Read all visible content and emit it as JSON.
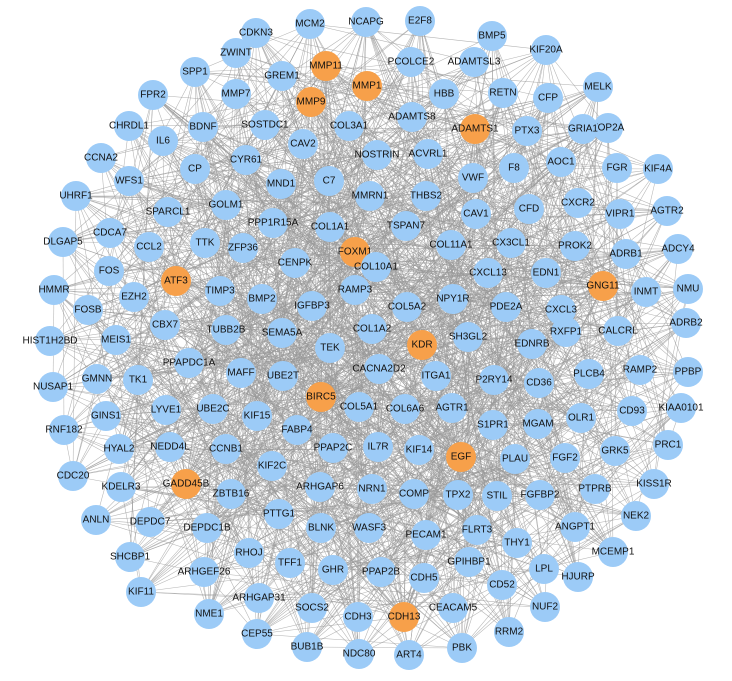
{
  "colors": {
    "background": "#ffffff",
    "normal_node": "#9ccbf7",
    "hub_node": "#f7a04a",
    "edge": "#9a9a9a",
    "label": "#111111"
  },
  "nodes": [
    {
      "id": "CDKN3",
      "hub": false
    },
    {
      "id": "MCM2",
      "hub": false
    },
    {
      "id": "NCAPG",
      "hub": false
    },
    {
      "id": "E2F8",
      "hub": false
    },
    {
      "id": "BMP5",
      "hub": false
    },
    {
      "id": "KIF20A",
      "hub": false
    },
    {
      "id": "ZWINT",
      "hub": false
    },
    {
      "id": "MMP11",
      "hub": true
    },
    {
      "id": "PCOLCE2",
      "hub": false
    },
    {
      "id": "ADAMTSL3",
      "hub": false
    },
    {
      "id": "SPP1",
      "hub": false
    },
    {
      "id": "GREM1",
      "hub": false
    },
    {
      "id": "MMP1",
      "hub": true
    },
    {
      "id": "MELK",
      "hub": false
    },
    {
      "id": "FPR2",
      "hub": false
    },
    {
      "id": "MMP7",
      "hub": false
    },
    {
      "id": "MMP9",
      "hub": true
    },
    {
      "id": "HBB",
      "hub": false
    },
    {
      "id": "RETN",
      "hub": false
    },
    {
      "id": "CFP",
      "hub": false
    },
    {
      "id": "CHRDL1",
      "hub": false
    },
    {
      "id": "BDNF",
      "hub": false
    },
    {
      "id": "SOSTDC1",
      "hub": false
    },
    {
      "id": "ADAMTS8",
      "hub": false
    },
    {
      "id": "ADAMTS1",
      "hub": true
    },
    {
      "id": "TOP2A",
      "hub": false
    },
    {
      "id": "COL3A1",
      "hub": false
    },
    {
      "id": "PTX3",
      "hub": false
    },
    {
      "id": "GRIA1",
      "hub": false
    },
    {
      "id": "CCNA2",
      "hub": false
    },
    {
      "id": "IL6",
      "hub": false
    },
    {
      "id": "CAV2",
      "hub": false
    },
    {
      "id": "NOSTRIN",
      "hub": false
    },
    {
      "id": "ACVRL1",
      "hub": false
    },
    {
      "id": "KIF4A",
      "hub": false
    },
    {
      "id": "CP",
      "hub": false
    },
    {
      "id": "CYR61",
      "hub": false
    },
    {
      "id": "F8",
      "hub": false
    },
    {
      "id": "AOC1",
      "hub": false
    },
    {
      "id": "FGR",
      "hub": false
    },
    {
      "id": "UHRF1",
      "hub": false
    },
    {
      "id": "WFS1",
      "hub": false
    },
    {
      "id": "MND1",
      "hub": false
    },
    {
      "id": "C7",
      "hub": false
    },
    {
      "id": "VWF",
      "hub": false
    },
    {
      "id": "CXCR2",
      "hub": false
    },
    {
      "id": "AGTR2",
      "hub": false
    },
    {
      "id": "SPARCL1",
      "hub": false
    },
    {
      "id": "GOLM1",
      "hub": false
    },
    {
      "id": "MMRN1",
      "hub": false
    },
    {
      "id": "THBS2",
      "hub": false
    },
    {
      "id": "CFD",
      "hub": false
    },
    {
      "id": "VIPR1",
      "hub": false
    },
    {
      "id": "DLGAP5",
      "hub": false
    },
    {
      "id": "CDCA7",
      "hub": false
    },
    {
      "id": "PPP1R15A",
      "hub": false
    },
    {
      "id": "COL1A1",
      "hub": false
    },
    {
      "id": "TSPAN7",
      "hub": false
    },
    {
      "id": "CAV1",
      "hub": false
    },
    {
      "id": "ADCY4",
      "hub": false
    },
    {
      "id": "CCL2",
      "hub": false
    },
    {
      "id": "TTK",
      "hub": false
    },
    {
      "id": "ZFP36",
      "hub": false
    },
    {
      "id": "FOXM1",
      "hub": true
    },
    {
      "id": "COL11A1",
      "hub": false
    },
    {
      "id": "CX3CL1",
      "hub": false
    },
    {
      "id": "PROK2",
      "hub": false
    },
    {
      "id": "ADRB1",
      "hub": false
    },
    {
      "id": "FOS",
      "hub": false
    },
    {
      "id": "CENPK",
      "hub": false
    },
    {
      "id": "COL10A1",
      "hub": false
    },
    {
      "id": "CXCL13",
      "hub": false
    },
    {
      "id": "EDN1",
      "hub": false
    },
    {
      "id": "GNG11",
      "hub": true
    },
    {
      "id": "HMMR",
      "hub": false
    },
    {
      "id": "ATF3",
      "hub": true
    },
    {
      "id": "NMU",
      "hub": false
    },
    {
      "id": "EZH2",
      "hub": false
    },
    {
      "id": "TIMP3",
      "hub": false
    },
    {
      "id": "BMP2",
      "hub": false
    },
    {
      "id": "RAMP3",
      "hub": false
    },
    {
      "id": "INMT",
      "hub": false
    },
    {
      "id": "FOSB",
      "hub": false
    },
    {
      "id": "IGFBP3",
      "hub": false
    },
    {
      "id": "COL5A2",
      "hub": false
    },
    {
      "id": "NPY1R",
      "hub": false
    },
    {
      "id": "PDE2A",
      "hub": false
    },
    {
      "id": "CXCL3",
      "hub": false
    },
    {
      "id": "ADRB2",
      "hub": false
    },
    {
      "id": "HIST1H2BD",
      "hub": false
    },
    {
      "id": "MEIS1",
      "hub": false
    },
    {
      "id": "CBX7",
      "hub": false
    },
    {
      "id": "TUBB2B",
      "hub": false
    },
    {
      "id": "SEMA5A",
      "hub": false
    },
    {
      "id": "COL1A2",
      "hub": false
    },
    {
      "id": "SH3GL2",
      "hub": false
    },
    {
      "id": "RXFP1",
      "hub": false
    },
    {
      "id": "CALCRL",
      "hub": false
    },
    {
      "id": "KDR",
      "hub": true
    },
    {
      "id": "EDNRB",
      "hub": false
    },
    {
      "id": "NUSAP1",
      "hub": false
    },
    {
      "id": "GMNN",
      "hub": false
    },
    {
      "id": "TK1",
      "hub": false
    },
    {
      "id": "PPAPDC1A",
      "hub": false
    },
    {
      "id": "TEK",
      "hub": false
    },
    {
      "id": "MAFF",
      "hub": false
    },
    {
      "id": "UBE2T",
      "hub": false
    },
    {
      "id": "CACNA2D2",
      "hub": false
    },
    {
      "id": "ITGA1",
      "hub": false
    },
    {
      "id": "P2RY14",
      "hub": false
    },
    {
      "id": "CD36",
      "hub": false
    },
    {
      "id": "PLCB4",
      "hub": false
    },
    {
      "id": "RAMP2",
      "hub": false
    },
    {
      "id": "PPBP",
      "hub": false
    },
    {
      "id": "GINS1",
      "hub": false
    },
    {
      "id": "LYVE1",
      "hub": false
    },
    {
      "id": "UBE2C",
      "hub": false
    },
    {
      "id": "BIRC5",
      "hub": true
    },
    {
      "id": "COL5A1",
      "hub": false
    },
    {
      "id": "COL6A6",
      "hub": false
    },
    {
      "id": "AGTR1",
      "hub": false
    },
    {
      "id": "S1PR1",
      "hub": false
    },
    {
      "id": "MGAM",
      "hub": false
    },
    {
      "id": "OLR1",
      "hub": false
    },
    {
      "id": "CD93",
      "hub": false
    },
    {
      "id": "KIAA0101",
      "hub": false
    },
    {
      "id": "RNF182",
      "hub": false
    },
    {
      "id": "KIF15",
      "hub": false
    },
    {
      "id": "FABP4",
      "hub": false
    },
    {
      "id": "HYAL2",
      "hub": false
    },
    {
      "id": "NEDD4L",
      "hub": false
    },
    {
      "id": "CCNB1",
      "hub": false
    },
    {
      "id": "PPAP2C",
      "hub": false
    },
    {
      "id": "IL7R",
      "hub": false
    },
    {
      "id": "KIF14",
      "hub": false
    },
    {
      "id": "EGF",
      "hub": true
    },
    {
      "id": "PLAU",
      "hub": false
    },
    {
      "id": "FGF2",
      "hub": false
    },
    {
      "id": "GRK5",
      "hub": false
    },
    {
      "id": "PRC1",
      "hub": false
    },
    {
      "id": "CDC20",
      "hub": false
    },
    {
      "id": "KDELR3",
      "hub": false
    },
    {
      "id": "GADD45B",
      "hub": true
    },
    {
      "id": "KIF2C",
      "hub": false
    },
    {
      "id": "ARHGAP6",
      "hub": false
    },
    {
      "id": "NRN1",
      "hub": false
    },
    {
      "id": "COMP",
      "hub": false
    },
    {
      "id": "TPX2",
      "hub": false
    },
    {
      "id": "STIL",
      "hub": false
    },
    {
      "id": "FGFBP2",
      "hub": false
    },
    {
      "id": "PTPRB",
      "hub": false
    },
    {
      "id": "KISS1R",
      "hub": false
    },
    {
      "id": "ANLN",
      "hub": false
    },
    {
      "id": "DEPDC7",
      "hub": false
    },
    {
      "id": "ZBTB16",
      "hub": false
    },
    {
      "id": "DEPDC1B",
      "hub": false
    },
    {
      "id": "PTTG1",
      "hub": false
    },
    {
      "id": "BLNK",
      "hub": false
    },
    {
      "id": "WASF3",
      "hub": false
    },
    {
      "id": "PECAM1",
      "hub": false
    },
    {
      "id": "FLRT3",
      "hub": false
    },
    {
      "id": "ANGPT1",
      "hub": false
    },
    {
      "id": "NEK2",
      "hub": false
    },
    {
      "id": "SHCBP1",
      "hub": false
    },
    {
      "id": "RHOJ",
      "hub": false
    },
    {
      "id": "THY1",
      "hub": false
    },
    {
      "id": "GPIHBP1",
      "hub": false
    },
    {
      "id": "MCEMP1",
      "hub": false
    },
    {
      "id": "ARHGEF26",
      "hub": false
    },
    {
      "id": "TFF1",
      "hub": false
    },
    {
      "id": "GHR",
      "hub": false
    },
    {
      "id": "PPAP2B",
      "hub": false
    },
    {
      "id": "CDH5",
      "hub": false
    },
    {
      "id": "LPL",
      "hub": false
    },
    {
      "id": "HJURP",
      "hub": false
    },
    {
      "id": "KIF11",
      "hub": false
    },
    {
      "id": "CD52",
      "hub": false
    },
    {
      "id": "ARHGAP31",
      "hub": false
    },
    {
      "id": "NME1",
      "hub": false
    },
    {
      "id": "SOCS2",
      "hub": false
    },
    {
      "id": "CEACAM5",
      "hub": false
    },
    {
      "id": "NUF2",
      "hub": false
    },
    {
      "id": "CEP55",
      "hub": false
    },
    {
      "id": "CDH3",
      "hub": false
    },
    {
      "id": "CDH13",
      "hub": true
    },
    {
      "id": "RRM2",
      "hub": false
    },
    {
      "id": "BUB1B",
      "hub": false
    },
    {
      "id": "NDC80",
      "hub": false
    },
    {
      "id": "ART4",
      "hub": false
    },
    {
      "id": "PBK",
      "hub": false
    }
  ]
}
